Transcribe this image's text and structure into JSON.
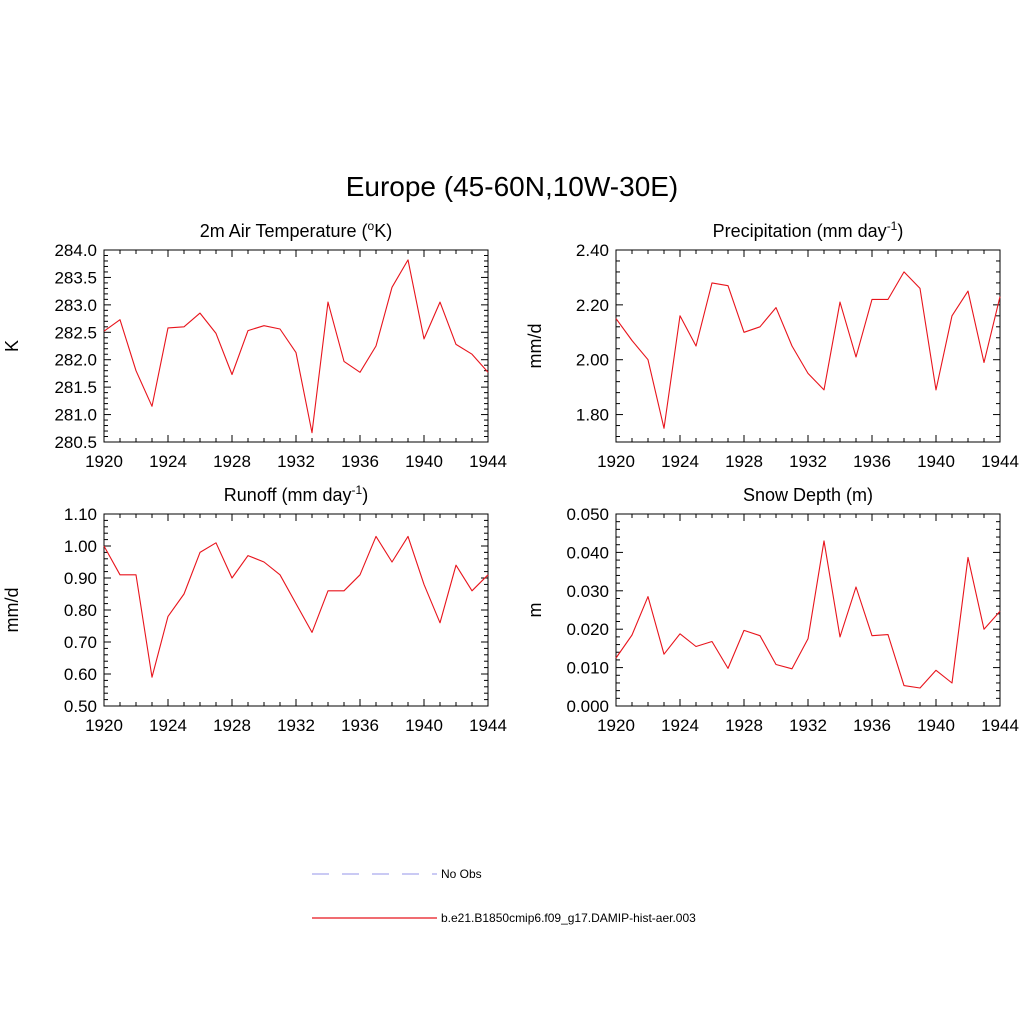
{
  "figure": {
    "title": "Europe (45-60N,10W-30E)"
  },
  "legend": {
    "items": [
      {
        "label": "No Obs",
        "color": "#aaaaee",
        "style": "dashed"
      },
      {
        "label": "b.e21.B1850cmip6.f09_g17.DAMIP-hist-aer.003",
        "color": "#e8141c",
        "style": "solid"
      }
    ]
  },
  "chart_data": [
    {
      "type": "line",
      "title": "2m Air Temperature (oK)",
      "title_parts": {
        "pre": "2m Air Temperature (",
        "sup": "o",
        "post": "K)"
      },
      "ylabel": "K",
      "xlabel": "",
      "xlim": [
        1920,
        1944
      ],
      "ylim": [
        280.5,
        284.0
      ],
      "xticks": [
        1920,
        1924,
        1928,
        1932,
        1936,
        1940,
        1944
      ],
      "yticks": [
        "280.5",
        "281.0",
        "281.5",
        "282.0",
        "282.5",
        "283.0",
        "283.5",
        "284.0"
      ],
      "series": [
        {
          "color": "#e8141c",
          "x": [
            1920,
            1921,
            1922,
            1923,
            1924,
            1925,
            1926,
            1927,
            1928,
            1929,
            1930,
            1931,
            1932,
            1933,
            1934,
            1935,
            1936,
            1937,
            1938,
            1939,
            1940,
            1941,
            1942,
            1943,
            1944
          ],
          "y": [
            282.52,
            282.73,
            281.8,
            281.15,
            282.58,
            282.6,
            282.85,
            282.48,
            281.73,
            282.53,
            282.62,
            282.56,
            282.13,
            280.67,
            283.05,
            281.97,
            281.77,
            282.25,
            283.32,
            283.82,
            282.38,
            283.05,
            282.28,
            282.1,
            281.77
          ]
        }
      ]
    },
    {
      "type": "line",
      "title": "Precipitation (mm day-1)",
      "title_parts": {
        "pre": "Precipitation (mm day",
        "sup": "-1",
        "post": ")"
      },
      "ylabel": "mm/d",
      "xlabel": "",
      "xlim": [
        1920,
        1944
      ],
      "ylim": [
        1.7,
        2.4
      ],
      "xticks": [
        1920,
        1924,
        1928,
        1932,
        1936,
        1940,
        1944
      ],
      "yticks": [
        "1.80",
        "2.00",
        "2.20",
        "2.40"
      ],
      "series": [
        {
          "color": "#e8141c",
          "x": [
            1920,
            1921,
            1922,
            1923,
            1924,
            1925,
            1926,
            1927,
            1928,
            1929,
            1930,
            1931,
            1932,
            1933,
            1934,
            1935,
            1936,
            1937,
            1938,
            1939,
            1940,
            1941,
            1942,
            1943,
            1944
          ],
          "y": [
            2.15,
            2.07,
            2.0,
            1.75,
            2.16,
            2.05,
            2.28,
            2.27,
            2.1,
            2.12,
            2.19,
            2.05,
            1.95,
            1.89,
            2.21,
            2.01,
            2.22,
            2.22,
            2.32,
            2.26,
            1.89,
            2.16,
            2.25,
            1.99,
            2.23
          ]
        }
      ]
    },
    {
      "type": "line",
      "title": "Runoff (mm day-1)",
      "title_parts": {
        "pre": "Runoff (mm day",
        "sup": "-1",
        "post": ")"
      },
      "ylabel": "mm/d",
      "xlabel": "",
      "xlim": [
        1920,
        1944
      ],
      "ylim": [
        0.5,
        1.1
      ],
      "xticks": [
        1920,
        1924,
        1928,
        1932,
        1936,
        1940,
        1944
      ],
      "yticks": [
        "0.50",
        "0.60",
        "0.70",
        "0.80",
        "0.90",
        "1.00",
        "1.10"
      ],
      "series": [
        {
          "color": "#e8141c",
          "x": [
            1920,
            1921,
            1922,
            1923,
            1924,
            1925,
            1926,
            1927,
            1928,
            1929,
            1930,
            1931,
            1932,
            1933,
            1934,
            1935,
            1936,
            1937,
            1938,
            1939,
            1940,
            1941,
            1942,
            1943,
            1944
          ],
          "y": [
            1.0,
            0.91,
            0.91,
            0.59,
            0.78,
            0.85,
            0.98,
            1.01,
            0.9,
            0.97,
            0.95,
            0.91,
            0.82,
            0.73,
            0.86,
            0.86,
            0.91,
            1.03,
            0.95,
            1.03,
            0.88,
            0.76,
            0.94,
            0.86,
            0.91
          ]
        }
      ]
    },
    {
      "type": "line",
      "title": "Snow Depth (m)",
      "title_parts": {
        "pre": "Snow Depth (m)",
        "sup": "",
        "post": ""
      },
      "ylabel": "m",
      "xlabel": "",
      "xlim": [
        1920,
        1944
      ],
      "ylim": [
        0.0,
        0.05
      ],
      "xticks": [
        1920,
        1924,
        1928,
        1932,
        1936,
        1940,
        1944
      ],
      "yticks": [
        "0.000",
        "0.010",
        "0.020",
        "0.030",
        "0.040",
        "0.050"
      ],
      "series": [
        {
          "color": "#e8141c",
          "x": [
            1920,
            1921,
            1922,
            1923,
            1924,
            1925,
            1926,
            1927,
            1928,
            1929,
            1930,
            1931,
            1932,
            1933,
            1934,
            1935,
            1936,
            1937,
            1938,
            1939,
            1940,
            1941,
            1942,
            1943,
            1944
          ],
          "y": [
            0.0125,
            0.0185,
            0.0285,
            0.0135,
            0.0188,
            0.0155,
            0.0168,
            0.0098,
            0.0197,
            0.0183,
            0.0108,
            0.0097,
            0.0175,
            0.043,
            0.018,
            0.031,
            0.0183,
            0.0186,
            0.0053,
            0.0047,
            0.0093,
            0.006,
            0.0387,
            0.02,
            0.0247
          ]
        }
      ]
    }
  ]
}
